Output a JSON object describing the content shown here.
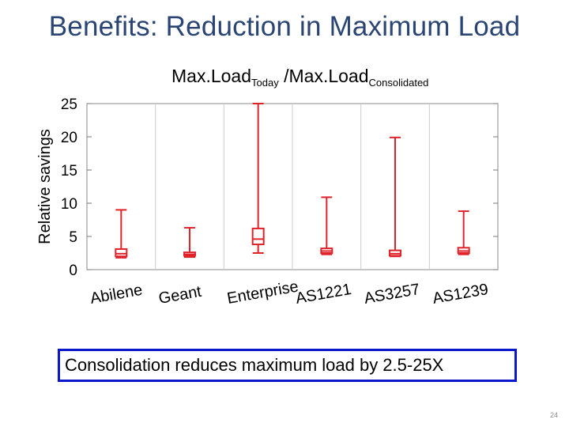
{
  "slide": {
    "title": "Benefits: Reduction in Maximum Load",
    "formula": {
      "numerator": "Max.Load",
      "numerator_sub": "Today",
      "separator": " /",
      "denominator": "Max.Load",
      "denominator_sub": "Consolidated"
    },
    "conclusion": "Consolidation reduces maximum load by 2.5-25X",
    "page_number": "24"
  },
  "colors": {
    "title": "#2a4573",
    "box": "#e0222a",
    "frame": "#0b17c8",
    "grid": "#cccccc"
  },
  "chart_data": {
    "type": "boxplot",
    "ylabel": "Relative savings",
    "xlabel": "",
    "ylim": [
      0,
      25
    ],
    "yticks": [
      0,
      5,
      10,
      15,
      20,
      25
    ],
    "categories": [
      "Abilene",
      "Geant",
      "Enterprise",
      "AS1221",
      "AS3257",
      "AS1239"
    ],
    "series": [
      {
        "name": "Abilene",
        "min": 1.8,
        "q1": 2.0,
        "median": 2.4,
        "q3": 3.1,
        "max": 9.0
      },
      {
        "name": "Geant",
        "min": 1.9,
        "q1": 2.1,
        "median": 2.3,
        "q3": 2.6,
        "max": 6.3
      },
      {
        "name": "Enterprise",
        "min": 2.5,
        "q1": 3.8,
        "median": 4.6,
        "q3": 6.2,
        "max": 25.0
      },
      {
        "name": "AS1221",
        "min": 2.3,
        "q1": 2.5,
        "median": 2.8,
        "q3": 3.2,
        "max": 10.9
      },
      {
        "name": "AS3257",
        "min": 2.0,
        "q1": 2.1,
        "median": 2.4,
        "q3": 2.9,
        "max": 19.9
      },
      {
        "name": "AS1239",
        "min": 2.3,
        "q1": 2.5,
        "median": 2.8,
        "q3": 3.3,
        "max": 8.8
      }
    ],
    "grid": true
  }
}
